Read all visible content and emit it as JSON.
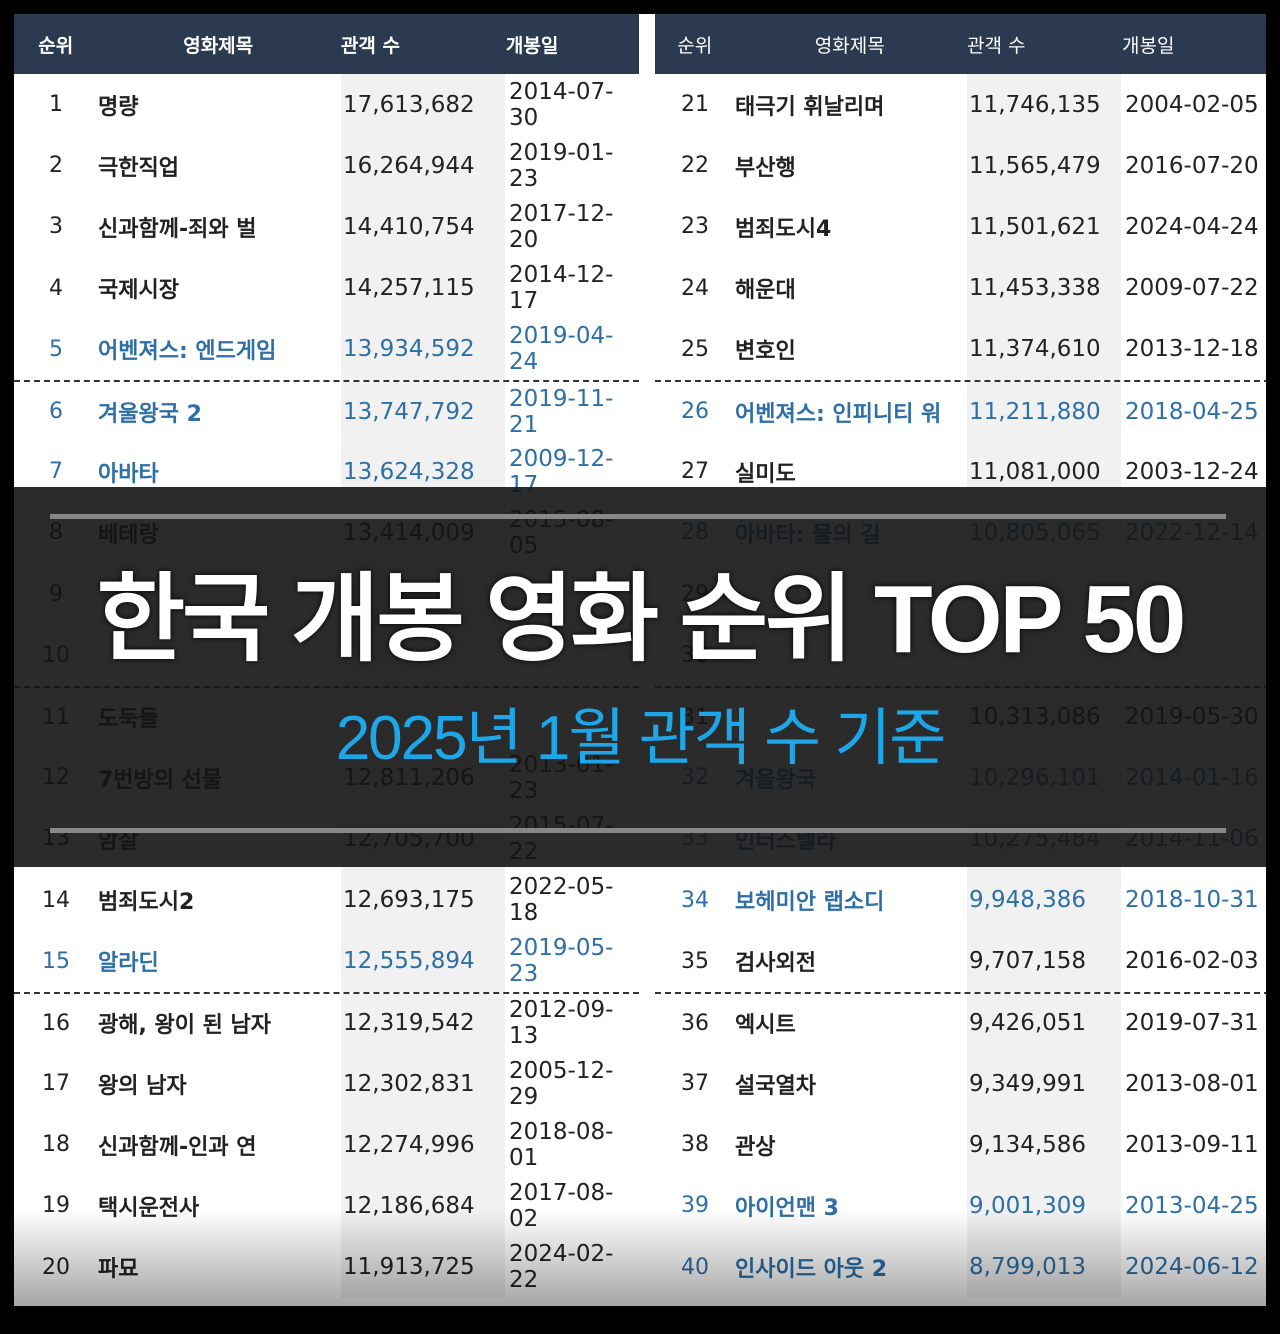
{
  "headline": "한국 개봉 영화 순위 TOP 50",
  "subline": "2025년 1월 관객 수 기준",
  "columns": {
    "rank": "순위",
    "title": "영화제목",
    "audience": "관객 수",
    "date": "개봉일"
  },
  "colors": {
    "header_bg": "#2b3a50",
    "highlight": "#2d6fa6",
    "subline": "#1ea7e8"
  },
  "left_rows": [
    {
      "rank": "1",
      "title": "명량",
      "audience": "17,613,682",
      "date": "2014-07-30",
      "hl": false,
      "dash": false
    },
    {
      "rank": "2",
      "title": "극한직업",
      "audience": "16,264,944",
      "date": "2019-01-23",
      "hl": false,
      "dash": false
    },
    {
      "rank": "3",
      "title": "신과함께-죄와 벌",
      "audience": "14,410,754",
      "date": "2017-12-20",
      "hl": false,
      "dash": false
    },
    {
      "rank": "4",
      "title": "국제시장",
      "audience": "14,257,115",
      "date": "2014-12-17",
      "hl": false,
      "dash": false
    },
    {
      "rank": "5",
      "title": "어벤져스: 엔드게임",
      "audience": "13,934,592",
      "date": "2019-04-24",
      "hl": true,
      "dash": false
    },
    {
      "rank": "6",
      "title": "겨울왕국 2",
      "audience": "13,747,792",
      "date": "2019-11-21",
      "hl": true,
      "dash": true
    },
    {
      "rank": "7",
      "title": "아바타",
      "audience": "13,624,328",
      "date": "2009-12-17",
      "hl": true,
      "dash": false
    },
    {
      "rank": "8",
      "title": "베테랑",
      "audience": "13,414,009",
      "date": "2015-08-05",
      "hl": false,
      "dash": false
    },
    {
      "rank": "9",
      "title": "",
      "audience": "",
      "date": "",
      "hl": false,
      "dash": false
    },
    {
      "rank": "10",
      "title": "",
      "audience": "",
      "date": "",
      "hl": false,
      "dash": false
    },
    {
      "rank": "11",
      "title": "도둑들",
      "audience": "",
      "date": "",
      "hl": false,
      "dash": true
    },
    {
      "rank": "12",
      "title": "7번방의 선물",
      "audience": "12,811,206",
      "date": "2013-01-23",
      "hl": false,
      "dash": false
    },
    {
      "rank": "13",
      "title": "암살",
      "audience": "12,705,700",
      "date": "2015-07-22",
      "hl": false,
      "dash": false
    },
    {
      "rank": "14",
      "title": "범죄도시2",
      "audience": "12,693,175",
      "date": "2022-05-18",
      "hl": false,
      "dash": false
    },
    {
      "rank": "15",
      "title": "알라딘",
      "audience": "12,555,894",
      "date": "2019-05-23",
      "hl": true,
      "dash": false
    },
    {
      "rank": "16",
      "title": "광해, 왕이 된 남자",
      "audience": "12,319,542",
      "date": "2012-09-13",
      "hl": false,
      "dash": true
    },
    {
      "rank": "17",
      "title": "왕의 남자",
      "audience": "12,302,831",
      "date": "2005-12-29",
      "hl": false,
      "dash": false
    },
    {
      "rank": "18",
      "title": "신과함께-인과 연",
      "audience": "12,274,996",
      "date": "2018-08-01",
      "hl": false,
      "dash": false
    },
    {
      "rank": "19",
      "title": "택시운전사",
      "audience": "12,186,684",
      "date": "2017-08-02",
      "hl": false,
      "dash": false
    },
    {
      "rank": "20",
      "title": "파묘",
      "audience": "11,913,725",
      "date": "2024-02-22",
      "hl": false,
      "dash": false
    }
  ],
  "right_rows": [
    {
      "rank": "21",
      "title": "태극기 휘날리며",
      "audience": "11,746,135",
      "date": "2004-02-05",
      "hl": false,
      "dash": false
    },
    {
      "rank": "22",
      "title": "부산행",
      "audience": "11,565,479",
      "date": "2016-07-20",
      "hl": false,
      "dash": false
    },
    {
      "rank": "23",
      "title": "범죄도시4",
      "audience": "11,501,621",
      "date": "2024-04-24",
      "hl": false,
      "dash": false
    },
    {
      "rank": "24",
      "title": "해운대",
      "audience": "11,453,338",
      "date": "2009-07-22",
      "hl": false,
      "dash": false
    },
    {
      "rank": "25",
      "title": "변호인",
      "audience": "11,374,610",
      "date": "2013-12-18",
      "hl": false,
      "dash": false
    },
    {
      "rank": "26",
      "title": "어벤져스: 인피니티 워",
      "audience": "11,211,880",
      "date": "2018-04-25",
      "hl": true,
      "dash": true
    },
    {
      "rank": "27",
      "title": "실미도",
      "audience": "11,081,000",
      "date": "2003-12-24",
      "hl": false,
      "dash": false
    },
    {
      "rank": "28",
      "title": "아바타: 물의 길",
      "audience": "10,805,065",
      "date": "2022-12-14",
      "hl": true,
      "dash": false
    },
    {
      "rank": "29",
      "title": "",
      "audience": "",
      "date": "",
      "hl": false,
      "dash": false
    },
    {
      "rank": "30",
      "title": "",
      "audience": "",
      "date": "",
      "hl": false,
      "dash": false
    },
    {
      "rank": "31",
      "title": "",
      "audience": "10,313,086",
      "date": "2019-05-30",
      "hl": false,
      "dash": true
    },
    {
      "rank": "32",
      "title": "겨울왕국",
      "audience": "10,296,101",
      "date": "2014-01-16",
      "hl": true,
      "dash": false
    },
    {
      "rank": "33",
      "title": "인터스텔라",
      "audience": "10,275,484",
      "date": "2014-11-06",
      "hl": true,
      "dash": false
    },
    {
      "rank": "34",
      "title": "보헤미안 랩소디",
      "audience": "9,948,386",
      "date": "2018-10-31",
      "hl": true,
      "dash": false
    },
    {
      "rank": "35",
      "title": "검사외전",
      "audience": "9,707,158",
      "date": "2016-02-03",
      "hl": false,
      "dash": false
    },
    {
      "rank": "36",
      "title": "엑시트",
      "audience": "9,426,051",
      "date": "2019-07-31",
      "hl": false,
      "dash": true
    },
    {
      "rank": "37",
      "title": "설국열차",
      "audience": "9,349,991",
      "date": "2013-08-01",
      "hl": false,
      "dash": false
    },
    {
      "rank": "38",
      "title": "관상",
      "audience": "9,134,586",
      "date": "2013-09-11",
      "hl": false,
      "dash": false
    },
    {
      "rank": "39",
      "title": "아이언맨 3",
      "audience": "9,001,309",
      "date": "2013-04-25",
      "hl": true,
      "dash": false
    },
    {
      "rank": "40",
      "title": "인사이드 아웃 2",
      "audience": "8,799,013",
      "date": "2024-06-12",
      "hl": true,
      "dash": false
    }
  ]
}
